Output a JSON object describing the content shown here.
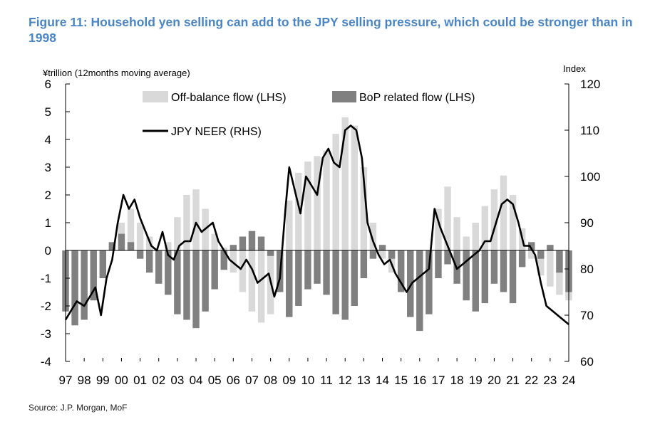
{
  "figure": {
    "title": "Figure 11: Household yen selling can add to the JPY selling pressure, which could be stronger than in 1998",
    "source": "Source: J.P. Morgan, MoF"
  },
  "chart_data": {
    "type": "bar",
    "left_axis_label": "¥trillion (12months moving average)",
    "right_axis_label": "Index",
    "ylim_left": [
      -4,
      6
    ],
    "ylim_right": [
      60,
      120
    ],
    "left_ticks": [
      "6",
      "5",
      "4",
      "3",
      "2",
      "1",
      "0",
      "-1",
      "-2",
      "-3",
      "-4"
    ],
    "right_ticks": [
      "120",
      "110",
      "100",
      "90",
      "80",
      "70",
      "60"
    ],
    "x_ticks": [
      "97",
      "98",
      "99",
      "00",
      "01",
      "02",
      "03",
      "04",
      "05",
      "06",
      "07",
      "08",
      "09",
      "10",
      "11",
      "12",
      "13",
      "14",
      "15",
      "16",
      "17",
      "18",
      "19",
      "20",
      "21",
      "22",
      "23",
      "24"
    ],
    "legend": {
      "position": "top-left"
    },
    "series": [
      {
        "name": "Off-balance flow (LHS)",
        "kind": "bar",
        "color": "#d9d9d9",
        "x": [
          1997.0,
          1997.5,
          1998.0,
          1998.5,
          1999.0,
          1999.5,
          2000.0,
          2000.5,
          2001.0,
          2001.5,
          2002.0,
          2002.5,
          2003.0,
          2003.5,
          2004.0,
          2004.5,
          2005.0,
          2005.5,
          2006.0,
          2006.5,
          2007.0,
          2007.5,
          2008.0,
          2008.5,
          2009.0,
          2009.5,
          2010.0,
          2010.5,
          2011.0,
          2011.5,
          2012.0,
          2012.5,
          2013.0,
          2013.5,
          2014.0,
          2014.5,
          2015.0,
          2015.5,
          2016.0,
          2016.5,
          2017.0,
          2017.5,
          2018.0,
          2018.5,
          2019.0,
          2019.5,
          2020.0,
          2020.5,
          2021.0,
          2021.5,
          2022.0,
          2022.5,
          2023.0,
          2023.5,
          2024.0
        ],
        "values": [
          -1.8,
          -2.4,
          -2.0,
          -1.5,
          -0.8,
          0.2,
          1.0,
          1.5,
          1.0,
          0.5,
          -0.3,
          0.3,
          1.2,
          2.0,
          2.2,
          1.5,
          0.6,
          0.1,
          -0.8,
          -1.5,
          -2.2,
          -2.6,
          -2.3,
          -1.0,
          1.8,
          2.8,
          3.2,
          3.4,
          3.6,
          4.2,
          4.8,
          4.5,
          3.0,
          1.0,
          -0.3,
          -0.8,
          -1.2,
          -1.6,
          -1.4,
          -0.5,
          1.5,
          2.3,
          1.2,
          0.5,
          1.0,
          1.6,
          2.2,
          2.7,
          2.0,
          0.8,
          -0.3,
          -0.9,
          -1.3,
          -1.6,
          -1.8
        ]
      },
      {
        "name": "BoP related flow (LHS)",
        "kind": "bar",
        "color": "#808080",
        "x": [
          1997.0,
          1997.5,
          1998.0,
          1998.5,
          1999.0,
          1999.5,
          2000.0,
          2000.5,
          2001.0,
          2001.5,
          2002.0,
          2002.5,
          2003.0,
          2003.5,
          2004.0,
          2004.5,
          2005.0,
          2005.5,
          2006.0,
          2006.5,
          2007.0,
          2007.5,
          2008.0,
          2008.5,
          2009.0,
          2009.5,
          2010.0,
          2010.5,
          2011.0,
          2011.5,
          2012.0,
          2012.5,
          2013.0,
          2013.5,
          2014.0,
          2014.5,
          2015.0,
          2015.5,
          2016.0,
          2016.5,
          2017.0,
          2017.5,
          2018.0,
          2018.5,
          2019.0,
          2019.5,
          2020.0,
          2020.5,
          2021.0,
          2021.5,
          2022.0,
          2022.5,
          2023.0,
          2023.5,
          2024.0
        ],
        "values": [
          -2.2,
          -2.7,
          -2.5,
          -1.8,
          -1.0,
          0.3,
          0.6,
          0.3,
          -0.3,
          -0.8,
          -1.2,
          -1.6,
          -2.3,
          -2.5,
          -2.8,
          -2.2,
          -1.4,
          -0.7,
          0.2,
          0.5,
          0.7,
          0.5,
          -0.2,
          -1.5,
          -2.4,
          -2.0,
          -1.4,
          -1.2,
          -1.6,
          -2.3,
          -2.5,
          -2.0,
          -1.0,
          -0.3,
          0.2,
          -0.3,
          -1.5,
          -2.4,
          -2.9,
          -2.3,
          -1.0,
          -0.5,
          -1.2,
          -1.8,
          -2.2,
          -1.9,
          -1.2,
          -1.5,
          -1.9,
          -0.6,
          0.3,
          -0.3,
          0.2,
          -0.8,
          -1.5
        ]
      },
      {
        "name": "JPY NEER (RHS)",
        "kind": "line",
        "color": "#000000",
        "axis": "right",
        "x": [
          1997.0,
          1997.3,
          1997.6,
          1998.0,
          1998.3,
          1998.6,
          1998.9,
          1999.2,
          1999.5,
          1999.8,
          2000.1,
          2000.4,
          2000.7,
          2001.0,
          2001.3,
          2001.6,
          2001.9,
          2002.2,
          2002.5,
          2002.8,
          2003.1,
          2003.4,
          2003.7,
          2004.0,
          2004.3,
          2004.6,
          2004.9,
          2005.2,
          2005.5,
          2005.8,
          2006.1,
          2006.4,
          2006.7,
          2007.0,
          2007.3,
          2007.6,
          2007.9,
          2008.2,
          2008.5,
          2008.8,
          2009.0,
          2009.3,
          2009.6,
          2009.9,
          2010.2,
          2010.5,
          2010.8,
          2011.1,
          2011.4,
          2011.7,
          2012.0,
          2012.3,
          2012.6,
          2012.9,
          2013.2,
          2013.5,
          2013.8,
          2014.1,
          2014.4,
          2014.7,
          2015.0,
          2015.3,
          2015.6,
          2015.9,
          2016.2,
          2016.5,
          2016.8,
          2017.1,
          2017.4,
          2017.7,
          2018.0,
          2018.3,
          2018.6,
          2018.9,
          2019.2,
          2019.5,
          2019.8,
          2020.1,
          2020.4,
          2020.7,
          2021.0,
          2021.3,
          2021.6,
          2021.9,
          2022.2,
          2022.5,
          2022.8,
          2023.1,
          2023.4,
          2023.7,
          2024.0
        ],
        "values": [
          69,
          71,
          73,
          72,
          74,
          76,
          70,
          78,
          82,
          90,
          96,
          93,
          95,
          91,
          88,
          85,
          84,
          88,
          83,
          82,
          85,
          86,
          86,
          90,
          88,
          89,
          90,
          86,
          84,
          82,
          81,
          80,
          82,
          80,
          77,
          78,
          79,
          74,
          78,
          93,
          102,
          97,
          92,
          100,
          98,
          96,
          104,
          106,
          103,
          102,
          110,
          111,
          110,
          104,
          90,
          86,
          83,
          81,
          82,
          79,
          77,
          75,
          77,
          78,
          79,
          80,
          93,
          89,
          86,
          83,
          80,
          81,
          82,
          83,
          84,
          86,
          86,
          90,
          94,
          95,
          94,
          90,
          85,
          85,
          83,
          77,
          72,
          71,
          70,
          69,
          68
        ]
      }
    ]
  }
}
